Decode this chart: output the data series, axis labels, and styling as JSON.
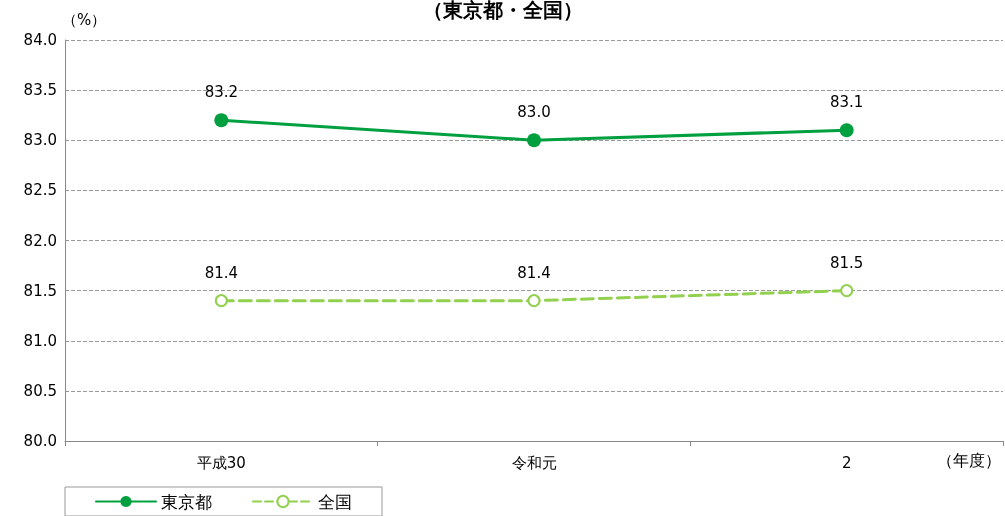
{
  "chart_data": {
    "type": "line",
    "title": "（東京都・全国）",
    "ylabel": "（%）",
    "xlabel": "（年度）",
    "categories": [
      "平成30",
      "令和元",
      "2"
    ],
    "series": [
      {
        "name": "東京都",
        "color": "#00a040",
        "values": [
          83.2,
          83.0,
          83.1
        ],
        "value_labels": [
          "83.2",
          "83.0",
          "83.1"
        ],
        "line_style": "solid"
      },
      {
        "name": "全国",
        "color": "#92d050",
        "values": [
          81.4,
          81.4,
          81.5
        ],
        "value_labels": [
          "81.4",
          "81.4",
          "81.5"
        ],
        "line_style": "dashed"
      }
    ],
    "ylim": [
      80.0,
      84.0
    ],
    "yticks": [
      {
        "value": 80,
        "label": "80.0"
      },
      {
        "value": 80.5,
        "label": "80.5"
      },
      {
        "value": 81,
        "label": "81.0"
      },
      {
        "value": 81.5,
        "label": "81.5"
      },
      {
        "value": 82,
        "label": "82.0"
      },
      {
        "value": 82.5,
        "label": "82.5"
      },
      {
        "value": 83,
        "label": "83.0"
      },
      {
        "value": 83.5,
        "label": "83.5"
      },
      {
        "value": 84,
        "label": "84.0"
      }
    ],
    "grid": "y",
    "legend": "bottom left",
    "marker": "circle",
    "data_labels": true
  }
}
